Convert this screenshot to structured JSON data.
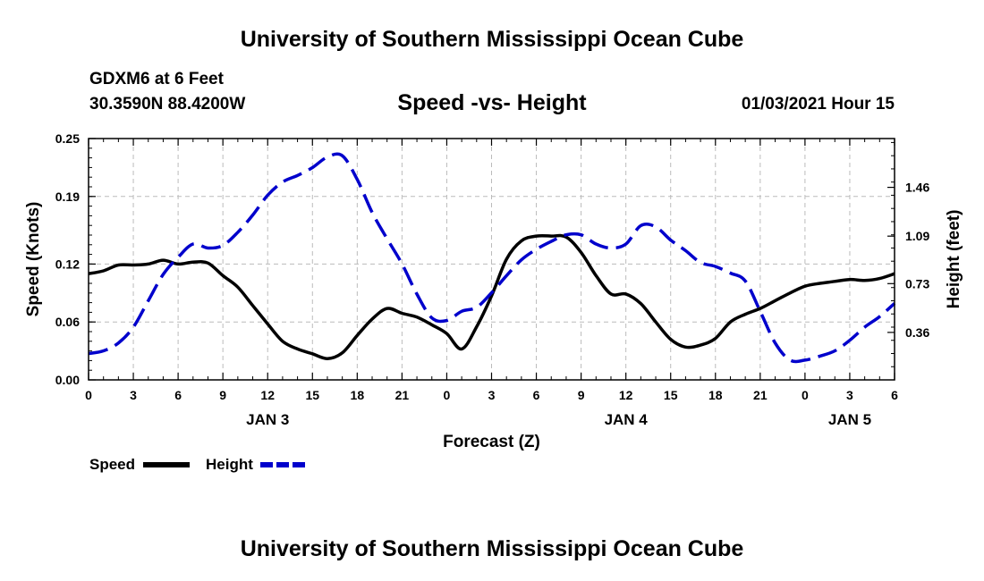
{
  "header": {
    "title_top": "University of Southern Mississippi Ocean Cube",
    "title_bottom": "University of Southern Mississippi Ocean Cube",
    "station": "GDXM6 at 6 Feet",
    "coords": "30.3590N 88.4200W",
    "chart_title": "Speed -vs- Height",
    "timestamp": "01/03/2021 Hour 15"
  },
  "legend": {
    "speed_label": "Speed",
    "height_label": "Height"
  },
  "colors": {
    "speed": "#000000",
    "height": "#0000cc",
    "grid": "#bbbbbb"
  },
  "chart_data": {
    "type": "line",
    "title": "Speed -vs- Height",
    "xlabel": "Forecast (Z)",
    "ylabel": "Speed (Knots)",
    "y2label": "Height (feet)",
    "xlim": [
      0,
      54
    ],
    "ylim": [
      0,
      0.25
    ],
    "y2lim": [
      0,
      1.83
    ],
    "x_ticks": [
      0,
      3,
      6,
      9,
      12,
      15,
      18,
      21,
      24,
      27,
      30,
      33,
      36,
      39,
      42,
      45,
      48,
      51,
      54
    ],
    "x_tick_labels": [
      "0",
      "3",
      "6",
      "9",
      "12",
      "15",
      "18",
      "21",
      "0",
      "3",
      "6",
      "9",
      "12",
      "15",
      "18",
      "21",
      "0",
      "3",
      "6"
    ],
    "day_labels": [
      {
        "x": 12,
        "label": "JAN 3"
      },
      {
        "x": 36,
        "label": "JAN 4"
      },
      {
        "x": 51,
        "label": "JAN 5"
      }
    ],
    "y_ticks": [
      0,
      0.06,
      0.12,
      0.19,
      0.25
    ],
    "y_tick_labels": [
      "0.00",
      "0.06",
      "0.12",
      "0.19",
      "0.25"
    ],
    "y2_ticks": [
      0.36,
      0.73,
      1.09,
      1.46
    ],
    "y2_tick_labels": [
      "0.36",
      "0.73",
      "1.09",
      "1.46"
    ],
    "legend_position": "bottom-left",
    "grid": true,
    "series": [
      {
        "name": "Speed",
        "axis": "left",
        "style": "solid",
        "x": [
          0,
          1,
          2,
          3,
          4,
          5,
          6,
          7,
          8,
          9,
          10,
          11,
          12,
          13,
          14,
          15,
          16,
          17,
          18,
          19,
          20,
          21,
          22,
          23,
          24,
          25,
          26,
          27,
          28,
          29,
          30,
          31,
          32,
          33,
          34,
          35,
          36,
          37,
          38,
          39,
          40,
          41,
          42,
          43,
          44,
          45,
          46,
          47,
          48,
          49,
          50,
          51,
          52,
          53,
          54
        ],
        "values": [
          0.11,
          0.113,
          0.119,
          0.119,
          0.12,
          0.124,
          0.12,
          0.122,
          0.121,
          0.108,
          0.096,
          0.077,
          0.058,
          0.04,
          0.032,
          0.027,
          0.022,
          0.028,
          0.046,
          0.063,
          0.074,
          0.069,
          0.065,
          0.057,
          0.048,
          0.032,
          0.055,
          0.087,
          0.125,
          0.144,
          0.149,
          0.149,
          0.148,
          0.132,
          0.108,
          0.089,
          0.089,
          0.079,
          0.06,
          0.042,
          0.034,
          0.036,
          0.043,
          0.06,
          0.068,
          0.074,
          0.082,
          0.09,
          0.097,
          0.1,
          0.102,
          0.104,
          0.103,
          0.105,
          0.11
        ]
      },
      {
        "name": "Height",
        "axis": "right",
        "style": "dashed",
        "x": [
          0,
          1,
          2,
          3,
          4,
          5,
          6,
          7,
          8,
          9,
          10,
          11,
          12,
          13,
          14,
          15,
          16,
          17,
          18,
          19,
          20,
          21,
          22,
          23,
          24,
          25,
          26,
          27,
          28,
          29,
          30,
          31,
          32,
          33,
          34,
          35,
          36,
          37,
          38,
          39,
          40,
          41,
          42,
          43,
          44,
          45,
          46,
          47,
          48,
          49,
          50,
          51,
          52,
          53,
          54
        ],
        "values": [
          0.2,
          0.22,
          0.28,
          0.4,
          0.6,
          0.8,
          0.93,
          1.03,
          1.0,
          1.02,
          1.12,
          1.25,
          1.4,
          1.5,
          1.55,
          1.61,
          1.69,
          1.7,
          1.52,
          1.27,
          1.07,
          0.88,
          0.65,
          0.47,
          0.45,
          0.52,
          0.55,
          0.66,
          0.79,
          0.91,
          0.99,
          1.05,
          1.1,
          1.1,
          1.03,
          1.0,
          1.03,
          1.17,
          1.16,
          1.06,
          0.98,
          0.89,
          0.86,
          0.81,
          0.75,
          0.52,
          0.28,
          0.15,
          0.15,
          0.18,
          0.22,
          0.3,
          0.4,
          0.48,
          0.58
        ]
      }
    ]
  }
}
